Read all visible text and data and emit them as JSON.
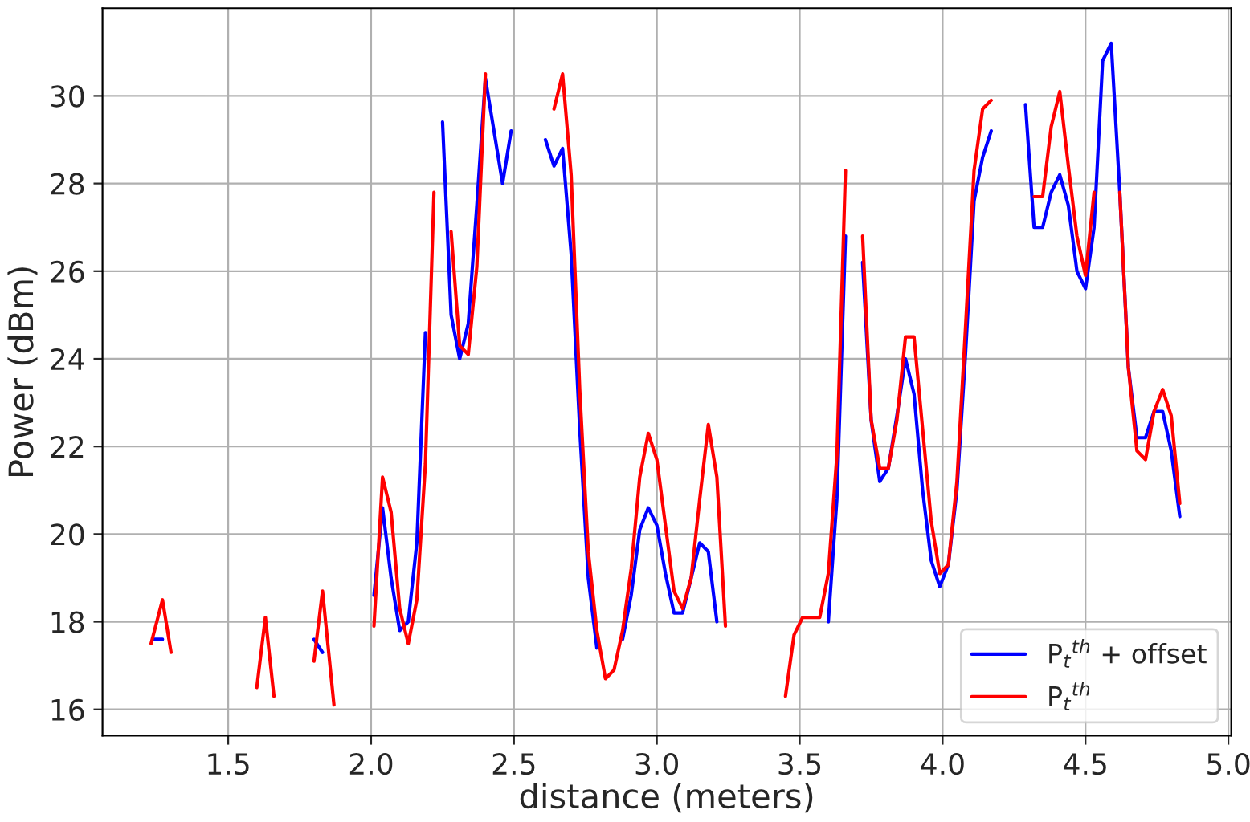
{
  "chart_data": {
    "type": "line",
    "xlabel": "distance (meters)",
    "ylabel": "Power (dBm)",
    "xlim": [
      1.06,
      5.01
    ],
    "ylim": [
      15.4,
      32.0
    ],
    "xticks": [
      1.5,
      {
        "value": 2,
        "label": "2.0"
      },
      2.5,
      {
        "value": 3,
        "label": "3.0"
      },
      3.5,
      {
        "value": 4,
        "label": "4.0"
      },
      4.5,
      {
        "value": 5,
        "label": "5.0"
      }
    ],
    "yticks": [
      16,
      18,
      20,
      22,
      24,
      26,
      28,
      30
    ],
    "grid": true,
    "legend": "bottom right",
    "series": [
      {
        "name": "P$_{t}$$^{th}$ + offset",
        "color": "#0000ff",
        "x": [
          1.24,
          1.27,
          1.5,
          1.8,
          1.83,
          1.9,
          2.01,
          2.04,
          2.07,
          2.1,
          2.13,
          2.16,
          2.19,
          2.22,
          2.25,
          2.28,
          2.31,
          2.34,
          2.37,
          2.4,
          2.43,
          2.46,
          2.49,
          2.55,
          2.61,
          2.64,
          2.67,
          2.7,
          2.73,
          2.76,
          2.79,
          2.83,
          2.88,
          2.91,
          2.94,
          2.97,
          3.0,
          3.03,
          3.06,
          3.09,
          3.12,
          3.15,
          3.18,
          3.21,
          3.4,
          3.6,
          3.63,
          3.66,
          3.69,
          3.72,
          3.75,
          3.78,
          3.81,
          3.84,
          3.87,
          3.9,
          3.93,
          3.96,
          3.99,
          4.02,
          4.05,
          4.08,
          4.11,
          4.14,
          4.17,
          4.23,
          4.29,
          4.32,
          4.35,
          4.38,
          4.41,
          4.44,
          4.47,
          4.5,
          4.53,
          4.56,
          4.59,
          4.62,
          4.65,
          4.68,
          4.71,
          4.74,
          4.77,
          4.8,
          4.83
        ],
        "values": [
          17.6,
          17.6,
          null,
          17.6,
          17.3,
          null,
          18.6,
          20.6,
          19.0,
          17.8,
          18.0,
          19.8,
          24.6,
          null,
          29.4,
          25.0,
          24.0,
          24.8,
          27.5,
          30.4,
          29.2,
          28.0,
          29.2,
          null,
          29.0,
          28.4,
          28.8,
          26.4,
          22.4,
          19.0,
          17.4,
          null,
          17.6,
          18.6,
          20.1,
          20.6,
          20.2,
          19.1,
          18.2,
          18.2,
          19.0,
          19.8,
          19.6,
          18.0,
          null,
          18.0,
          20.8,
          26.8,
          null,
          26.2,
          22.6,
          21.2,
          21.5,
          22.7,
          24.0,
          23.2,
          21.0,
          19.4,
          18.8,
          19.3,
          21.0,
          24.1,
          27.6,
          28.6,
          29.2,
          null,
          29.8,
          27.0,
          27.0,
          27.8,
          28.2,
          27.5,
          26.0,
          25.6,
          27.0,
          30.8,
          31.2,
          27.8,
          23.8,
          22.2,
          22.2,
          22.8,
          22.8,
          21.9,
          20.4
        ]
      },
      {
        "name": "P$_{t}$$^{th}$",
        "color": "#ff0000",
        "x": [
          1.23,
          1.27,
          1.3,
          1.45,
          1.6,
          1.63,
          1.66,
          1.73,
          1.8,
          1.83,
          1.87,
          1.95,
          2.01,
          2.04,
          2.07,
          2.1,
          2.13,
          2.16,
          2.19,
          2.22,
          2.25,
          2.28,
          2.31,
          2.34,
          2.37,
          2.4,
          2.52,
          2.64,
          2.67,
          2.7,
          2.73,
          2.76,
          2.79,
          2.82,
          2.85,
          2.88,
          2.91,
          2.94,
          2.97,
          3.0,
          3.03,
          3.06,
          3.09,
          3.12,
          3.15,
          3.18,
          3.21,
          3.24,
          3.35,
          3.45,
          3.48,
          3.51,
          3.57,
          3.6,
          3.63,
          3.66,
          3.69,
          3.72,
          3.75,
          3.78,
          3.81,
          3.84,
          3.87,
          3.9,
          3.93,
          3.96,
          3.99,
          4.02,
          4.05,
          4.08,
          4.11,
          4.14,
          4.17,
          4.25,
          4.32,
          4.35,
          4.38,
          4.41,
          4.44,
          4.47,
          4.5,
          4.53,
          4.58,
          4.62,
          4.65,
          4.68,
          4.71,
          4.74,
          4.77,
          4.8,
          4.83
        ],
        "values": [
          17.5,
          18.5,
          17.3,
          null,
          16.5,
          18.1,
          16.3,
          null,
          17.1,
          18.7,
          16.1,
          null,
          17.9,
          21.3,
          20.5,
          18.3,
          17.5,
          18.5,
          21.6,
          27.8,
          null,
          26.9,
          24.3,
          24.1,
          26.1,
          30.5,
          null,
          29.7,
          30.5,
          28.2,
          23.3,
          19.6,
          17.8,
          16.7,
          16.9,
          17.8,
          19.2,
          21.3,
          22.3,
          21.7,
          20.2,
          18.7,
          18.3,
          19.0,
          20.8,
          22.5,
          21.3,
          17.9,
          null,
          16.3,
          17.7,
          18.1,
          18.1,
          19.1,
          21.8,
          28.3,
          null,
          26.8,
          22.6,
          21.5,
          21.5,
          22.6,
          24.5,
          24.5,
          22.4,
          20.3,
          19.1,
          19.3,
          21.2,
          24.7,
          28.3,
          29.7,
          29.9,
          null,
          27.7,
          27.7,
          29.3,
          30.1,
          28.4,
          26.8,
          25.9,
          27.8,
          null,
          27.8,
          23.8,
          21.9,
          21.7,
          22.8,
          23.3,
          22.7,
          20.7
        ]
      }
    ]
  }
}
